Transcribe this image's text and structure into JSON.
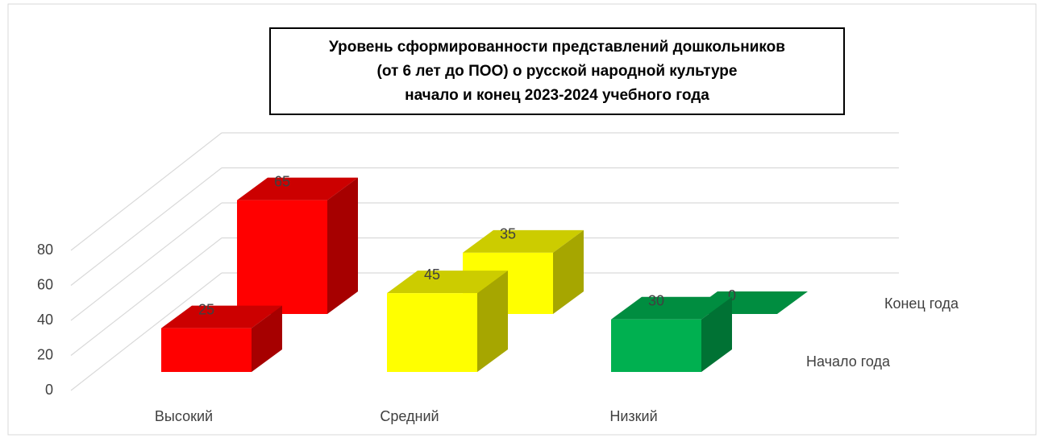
{
  "chart_data": {
    "type": "bar3d",
    "title": [
      "Уровень сформированности представлений дошкольников",
      "(от 6 лет до ПОО)  о русской народной культуре",
      "начало и конец 2023-2024 учебного года"
    ],
    "categories": [
      "Высокий",
      "Средний",
      "Низкий"
    ],
    "colors": [
      "#ff0000",
      "#ffff00",
      "#00b050"
    ],
    "series": [
      {
        "name": "Начало года",
        "values": [
          25,
          45,
          30
        ]
      },
      {
        "name": "Конец года",
        "values": [
          65,
          35,
          0
        ]
      }
    ],
    "ylim": [
      0,
      80
    ],
    "yticks": [
      0,
      20,
      40,
      60,
      80
    ],
    "grid": true
  }
}
